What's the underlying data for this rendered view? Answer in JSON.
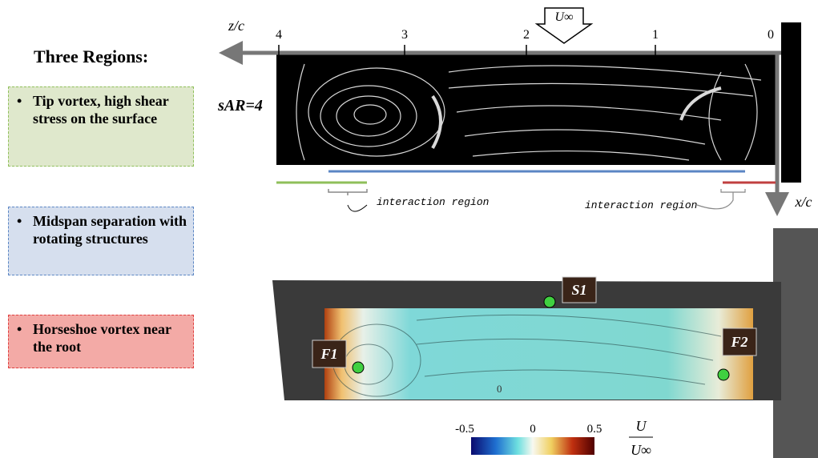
{
  "title": "Three Regions:",
  "regions": [
    {
      "text": "Tip vortex, high shear stress on the surface"
    },
    {
      "text": "Midspan separation with rotating structures"
    },
    {
      "text": "Horseshoe vortex near the root"
    }
  ],
  "top_panel": {
    "label": "sAR=4",
    "axis_label": "z/c",
    "ticks": [
      4,
      3,
      2,
      1,
      0
    ],
    "freestream": "U∞",
    "interaction_labels": [
      "interaction region",
      "interaction region"
    ],
    "x_axis_label": "x/c"
  },
  "bottom_panel": {
    "points": [
      "S1",
      "F1",
      "F2"
    ],
    "surface_label": "0",
    "colorbar": {
      "ticks": [
        -0.5,
        0,
        0.5
      ],
      "label_num": "U",
      "label_den": "U∞"
    }
  }
}
